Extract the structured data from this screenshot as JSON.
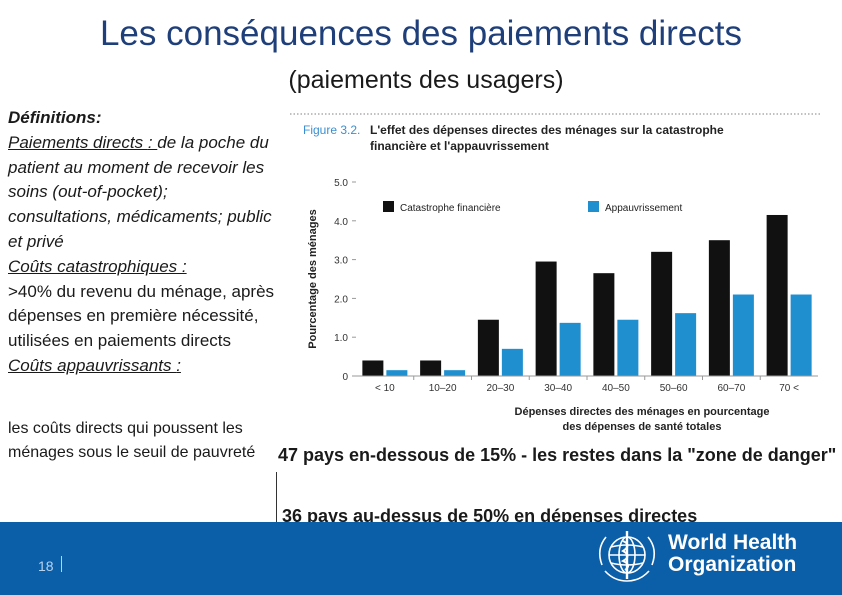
{
  "title": "Les conséquences des paiements directs",
  "subtitle": "(paiements des usagers)",
  "definitions": {
    "heading": "Définitions:",
    "direct_term": "Paiements directs ",
    "direct_colon": ": ",
    "direct_text": "de la poche du patient au moment de recevoir les soins (out-of-pocket); consultations, médicaments; public et privé",
    "catastrophic_term": "Coûts catastrophiques :",
    "catastrophic_text": ">40% du revenu du ménage, après dépenses en première nécessité, utilisées en paiements directs",
    "impoverishing_term": "Coûts appauvrissants ",
    "impoverishing_colon": ":",
    "impoverishing_text": "les coûts directs qui poussent les ménages sous le seuil de pauvreté"
  },
  "notes": {
    "first": "47 pays en-dessous de 15% - les restes dans la \"zone de danger\"",
    "second": "36 pays au-dessus de 50% en dépenses directes"
  },
  "footer": {
    "page_number": "18",
    "org_line1": "World Health",
    "org_line2": "Organization"
  },
  "chart_data": {
    "type": "bar",
    "figure_label": "Figure 3.2.",
    "title_line1": "L'effet des dépenses directes des ménages sur la catastrophe",
    "title_line2": "financière et l'appauvrissement",
    "ylabel": "Pourcentage des ménages",
    "xlabel_line1": "Dépenses directes des ménages en pourcentage",
    "xlabel_line2": "des dépenses de santé totales",
    "ylim": [
      0,
      5
    ],
    "yticks": [
      "0",
      "1.0",
      "2.0",
      "3.0",
      "4.0",
      "5.0"
    ],
    "categories": [
      "< 10",
      "10–20",
      "20–30",
      "30–40",
      "40–50",
      "50–60",
      "60–70",
      "70 <"
    ],
    "series": [
      {
        "name": "Catastrophe financière",
        "color": "#111111",
        "values": [
          0.4,
          0.4,
          1.45,
          2.95,
          2.65,
          3.2,
          3.5,
          4.15
        ]
      },
      {
        "name": "Appauvrissement",
        "color": "#1f8fd0",
        "values": [
          0.15,
          0.15,
          0.7,
          1.37,
          1.45,
          1.62,
          2.1,
          2.1
        ]
      }
    ],
    "legend_position": "top",
    "grid": false
  }
}
